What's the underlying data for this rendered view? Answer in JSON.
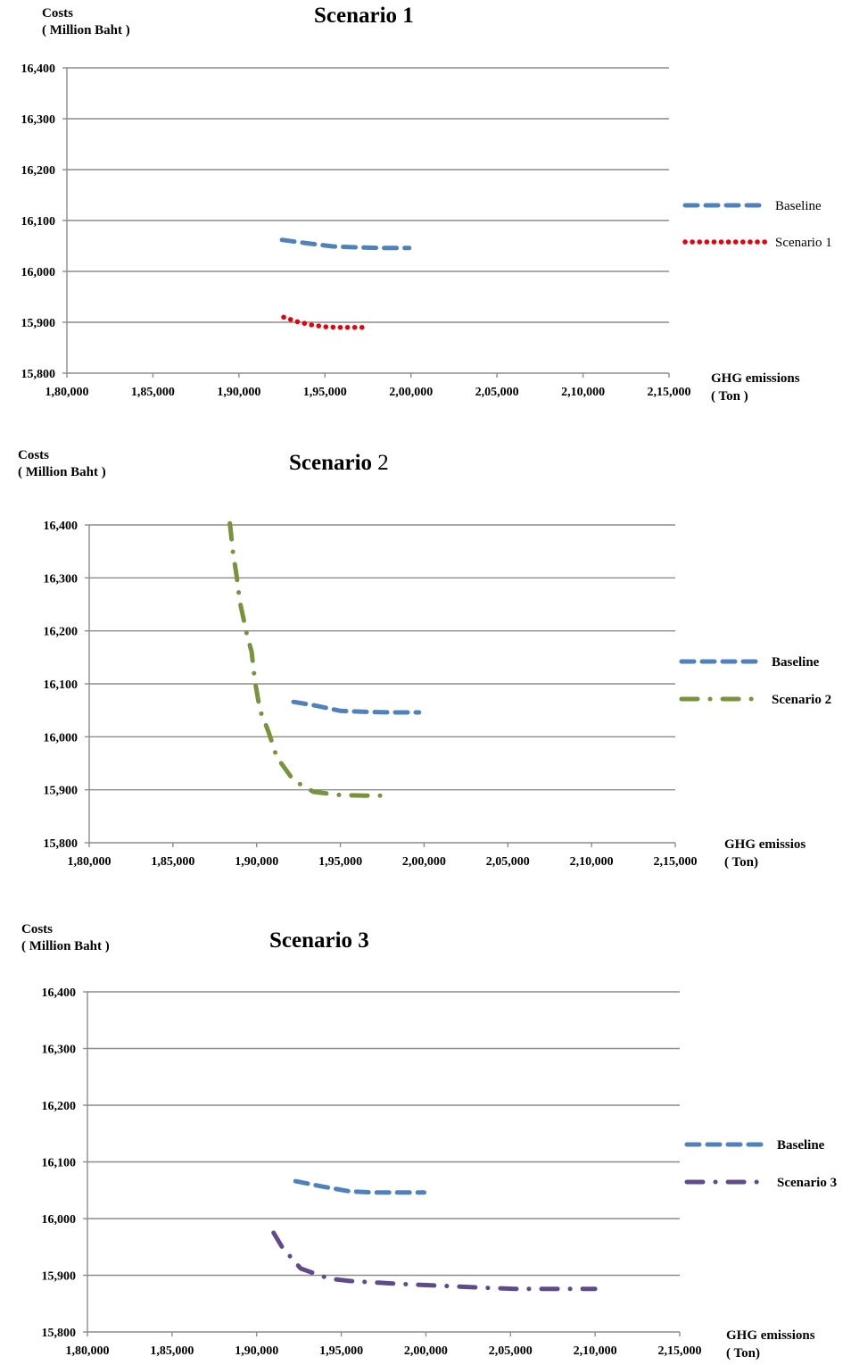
{
  "chart_data": [
    {
      "type": "line",
      "title": "Scenario 1",
      "ylabel": "Costs",
      "ylabel_unit": "( Million Baht )",
      "xlabel": "GHG emissions",
      "xlabel_unit": "( Ton )",
      "ylim": [
        15800,
        16400
      ],
      "xlim": [
        180000,
        215000
      ],
      "y_ticks": [
        "15,800",
        "15,900",
        "16,000",
        "16,100",
        "16,200",
        "16,300",
        "16,400"
      ],
      "x_ticks": [
        "1,80,000",
        "1,85,000",
        "1,90,000",
        "1,95,000",
        "2,00,000",
        "2,05,000",
        "2,10,000",
        "2,15,000"
      ],
      "grid": true,
      "legend_position": "right",
      "legend_bold": false,
      "series": [
        {
          "name": "Baseline",
          "color": "#4F81BD",
          "style": "dashed",
          "points": [
            [
              192500,
              16062
            ],
            [
              194000,
              16055
            ],
            [
              195500,
              16049
            ],
            [
              197000,
              16047
            ],
            [
              198500,
              16046
            ],
            [
              199900,
              16046
            ]
          ]
        },
        {
          "name": "Scenario 1",
          "color": "#E8000B",
          "style": "dotted",
          "points": [
            [
              192600,
              15910
            ],
            [
              193400,
              15901
            ],
            [
              194200,
              15895
            ],
            [
              195000,
              15891
            ],
            [
              195800,
              15890
            ],
            [
              196600,
              15890
            ],
            [
              197400,
              15890
            ]
          ]
        }
      ]
    },
    {
      "type": "line",
      "title": "Scenario",
      "title_suffix": "2",
      "ylabel": "Costs",
      "ylabel_unit": "( Million Baht )",
      "xlabel": "GHG emissios",
      "xlabel_unit": "( Ton)",
      "ylim": [
        15800,
        16400
      ],
      "xlim": [
        180000,
        215000
      ],
      "y_ticks": [
        "15,800",
        "15,900",
        "16,000",
        "16,100",
        "16,200",
        "16,300",
        "16,400"
      ],
      "x_ticks": [
        "1,80,000",
        "1,85,000",
        "1,90,000",
        "1,95,000",
        "2,00,000",
        "2,05,000",
        "2,10,000",
        "2,15,000"
      ],
      "grid": true,
      "legend_position": "right",
      "legend_bold": true,
      "series": [
        {
          "name": "Baseline",
          "color": "#4F81BD",
          "style": "dashed",
          "points": [
            [
              192200,
              16066
            ],
            [
              193500,
              16059
            ],
            [
              195000,
              16049
            ],
            [
              196500,
              16047
            ],
            [
              198000,
              16046
            ],
            [
              199700,
              16046
            ]
          ]
        },
        {
          "name": "Scenario 2",
          "color": "#77933C",
          "style": "dashdot",
          "points": [
            [
              188400,
              16403
            ],
            [
              188600,
              16345
            ],
            [
              188800,
              16305
            ],
            [
              189000,
              16255
            ],
            [
              189400,
              16195
            ],
            [
              189700,
              16160
            ],
            [
              189900,
              16105
            ],
            [
              190200,
              16050
            ],
            [
              190700,
              16010
            ],
            [
              191200,
              15962
            ],
            [
              192200,
              15918
            ],
            [
              193000,
              15903
            ],
            [
              193400,
              15896
            ],
            [
              195000,
              15890
            ],
            [
              196500,
              15889
            ],
            [
              198000,
              15889
            ]
          ]
        }
      ]
    },
    {
      "type": "line",
      "title": "Scenario 3",
      "ylabel": "Costs",
      "ylabel_unit": "( Million Baht )",
      "xlabel": "GHG emissions",
      "xlabel_unit": "( Ton)",
      "ylim": [
        15800,
        16400
      ],
      "xlim": [
        180000,
        215000
      ],
      "y_ticks": [
        "15,800",
        "15,900",
        "16,000",
        "16,100",
        "16,200",
        "16,300",
        "16,400"
      ],
      "x_ticks": [
        "1,80,000",
        "1,85,000",
        "1,90,000",
        "1,95,000",
        "2,00,000",
        "2,05,000",
        "2,10,000",
        "2,15,000"
      ],
      "grid": true,
      "legend_position": "right",
      "legend_bold": true,
      "series": [
        {
          "name": "Baseline",
          "color": "#4F81BD",
          "style": "dashed",
          "points": [
            [
              192300,
              16066
            ],
            [
              193800,
              16057
            ],
            [
              195500,
              16048
            ],
            [
              197000,
              16046
            ],
            [
              198500,
              16046
            ],
            [
              199900,
              16046
            ]
          ]
        },
        {
          "name": "Scenario 3",
          "color": "#5F4B8B",
          "style": "dashdot",
          "points": [
            [
              191000,
              15975
            ],
            [
              191500,
              15950
            ],
            [
              192600,
              15912
            ],
            [
              194300,
              15894
            ],
            [
              195500,
              15890
            ],
            [
              197200,
              15887
            ],
            [
              199000,
              15884
            ],
            [
              200500,
              15882
            ],
            [
              202000,
              15880
            ],
            [
              203500,
              15878
            ],
            [
              205300,
              15876
            ],
            [
              207000,
              15876
            ],
            [
              208500,
              15876
            ],
            [
              210000,
              15876
            ]
          ]
        }
      ]
    }
  ]
}
